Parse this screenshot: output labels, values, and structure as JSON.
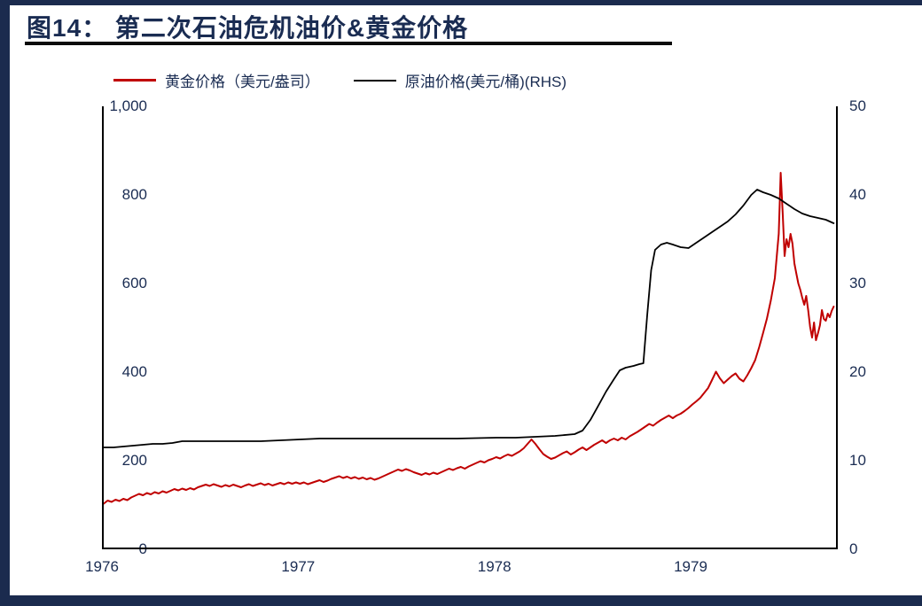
{
  "page": {
    "title": "图14： 第二次石油危机油价&黄金价格"
  },
  "chart_data": {
    "type": "line",
    "title": "第二次石油危机油价&黄金价格",
    "grid": false,
    "legend_position": "top",
    "x_axis": {
      "range": [
        1976,
        1979.75
      ],
      "ticks": [
        "1976",
        "1977",
        "1978",
        "1979"
      ],
      "tick_values": [
        1976,
        1977,
        1978,
        1979
      ]
    },
    "y_left": {
      "label": "黄金价格（美元/盎司）",
      "range": [
        0,
        1000
      ],
      "ticks": [
        "1,000",
        "800",
        "600",
        "400",
        "200",
        "0"
      ]
    },
    "y_right": {
      "label": "原油价格(美元/桶)",
      "range": [
        0,
        50
      ],
      "ticks": [
        "50",
        "40",
        "30",
        "20",
        "10",
        "0"
      ]
    },
    "series": [
      {
        "name": "黄金价格（美元/盎司）",
        "axis": "left",
        "color": "#c00000",
        "width": 2,
        "points": [
          [
            1976.0,
            103
          ],
          [
            1976.02,
            110
          ],
          [
            1976.04,
            107
          ],
          [
            1976.06,
            112
          ],
          [
            1976.08,
            109
          ],
          [
            1976.1,
            114
          ],
          [
            1976.12,
            111
          ],
          [
            1976.14,
            117
          ],
          [
            1976.16,
            121
          ],
          [
            1976.18,
            125
          ],
          [
            1976.2,
            122
          ],
          [
            1976.22,
            127
          ],
          [
            1976.24,
            124
          ],
          [
            1976.26,
            129
          ],
          [
            1976.28,
            126
          ],
          [
            1976.3,
            131
          ],
          [
            1976.32,
            128
          ],
          [
            1976.34,
            132
          ],
          [
            1976.36,
            136
          ],
          [
            1976.38,
            133
          ],
          [
            1976.4,
            137
          ],
          [
            1976.42,
            134
          ],
          [
            1976.44,
            138
          ],
          [
            1976.46,
            135
          ],
          [
            1976.48,
            140
          ],
          [
            1976.5,
            143
          ],
          [
            1976.52,
            146
          ],
          [
            1976.54,
            143
          ],
          [
            1976.56,
            147
          ],
          [
            1976.58,
            144
          ],
          [
            1976.6,
            141
          ],
          [
            1976.62,
            145
          ],
          [
            1976.64,
            142
          ],
          [
            1976.66,
            146
          ],
          [
            1976.68,
            143
          ],
          [
            1976.7,
            140
          ],
          [
            1976.72,
            144
          ],
          [
            1976.74,
            147
          ],
          [
            1976.76,
            143
          ],
          [
            1976.78,
            146
          ],
          [
            1976.8,
            149
          ],
          [
            1976.82,
            145
          ],
          [
            1976.84,
            148
          ],
          [
            1976.86,
            144
          ],
          [
            1976.88,
            147
          ],
          [
            1976.9,
            150
          ],
          [
            1976.92,
            147
          ],
          [
            1976.94,
            151
          ],
          [
            1976.96,
            148
          ],
          [
            1976.98,
            151
          ],
          [
            1977.0,
            148
          ],
          [
            1977.02,
            151
          ],
          [
            1977.04,
            147
          ],
          [
            1977.06,
            150
          ],
          [
            1977.08,
            153
          ],
          [
            1977.1,
            156
          ],
          [
            1977.12,
            152
          ],
          [
            1977.14,
            155
          ],
          [
            1977.16,
            159
          ],
          [
            1977.18,
            162
          ],
          [
            1977.2,
            165
          ],
          [
            1977.22,
            161
          ],
          [
            1977.24,
            164
          ],
          [
            1977.26,
            160
          ],
          [
            1977.28,
            163
          ],
          [
            1977.3,
            159
          ],
          [
            1977.32,
            162
          ],
          [
            1977.34,
            158
          ],
          [
            1977.36,
            161
          ],
          [
            1977.38,
            157
          ],
          [
            1977.4,
            160
          ],
          [
            1977.42,
            164
          ],
          [
            1977.44,
            168
          ],
          [
            1977.46,
            172
          ],
          [
            1977.48,
            176
          ],
          [
            1977.5,
            180
          ],
          [
            1977.52,
            177
          ],
          [
            1977.54,
            181
          ],
          [
            1977.56,
            178
          ],
          [
            1977.58,
            174
          ],
          [
            1977.6,
            171
          ],
          [
            1977.62,
            168
          ],
          [
            1977.64,
            172
          ],
          [
            1977.66,
            169
          ],
          [
            1977.68,
            173
          ],
          [
            1977.7,
            170
          ],
          [
            1977.72,
            174
          ],
          [
            1977.74,
            178
          ],
          [
            1977.76,
            182
          ],
          [
            1977.78,
            179
          ],
          [
            1977.8,
            183
          ],
          [
            1977.82,
            186
          ],
          [
            1977.84,
            182
          ],
          [
            1977.86,
            187
          ],
          [
            1977.88,
            191
          ],
          [
            1977.9,
            195
          ],
          [
            1977.92,
            199
          ],
          [
            1977.94,
            196
          ],
          [
            1977.96,
            201
          ],
          [
            1977.98,
            204
          ],
          [
            1978.0,
            208
          ],
          [
            1978.02,
            205
          ],
          [
            1978.04,
            210
          ],
          [
            1978.06,
            214
          ],
          [
            1978.08,
            211
          ],
          [
            1978.1,
            216
          ],
          [
            1978.12,
            221
          ],
          [
            1978.14,
            228
          ],
          [
            1978.16,
            238
          ],
          [
            1978.18,
            248
          ],
          [
            1978.2,
            238
          ],
          [
            1978.22,
            226
          ],
          [
            1978.24,
            215
          ],
          [
            1978.26,
            209
          ],
          [
            1978.28,
            204
          ],
          [
            1978.3,
            207
          ],
          [
            1978.32,
            212
          ],
          [
            1978.34,
            217
          ],
          [
            1978.36,
            221
          ],
          [
            1978.38,
            214
          ],
          [
            1978.4,
            219
          ],
          [
            1978.42,
            225
          ],
          [
            1978.44,
            230
          ],
          [
            1978.46,
            224
          ],
          [
            1978.48,
            230
          ],
          [
            1978.5,
            236
          ],
          [
            1978.52,
            241
          ],
          [
            1978.54,
            246
          ],
          [
            1978.56,
            240
          ],
          [
            1978.58,
            246
          ],
          [
            1978.6,
            250
          ],
          [
            1978.62,
            246
          ],
          [
            1978.64,
            252
          ],
          [
            1978.66,
            248
          ],
          [
            1978.68,
            255
          ],
          [
            1978.7,
            260
          ],
          [
            1978.72,
            265
          ],
          [
            1978.74,
            271
          ],
          [
            1978.76,
            277
          ],
          [
            1978.78,
            283
          ],
          [
            1978.8,
            279
          ],
          [
            1978.82,
            286
          ],
          [
            1978.84,
            292
          ],
          [
            1978.86,
            297
          ],
          [
            1978.88,
            302
          ],
          [
            1978.9,
            296
          ],
          [
            1978.92,
            302
          ],
          [
            1978.94,
            306
          ],
          [
            1978.96,
            312
          ],
          [
            1978.98,
            319
          ],
          [
            1979.0,
            327
          ],
          [
            1979.02,
            334
          ],
          [
            1979.04,
            342
          ],
          [
            1979.06,
            353
          ],
          [
            1979.08,
            364
          ],
          [
            1979.1,
            382
          ],
          [
            1979.12,
            401
          ],
          [
            1979.14,
            386
          ],
          [
            1979.16,
            375
          ],
          [
            1979.18,
            383
          ],
          [
            1979.2,
            391
          ],
          [
            1979.22,
            397
          ],
          [
            1979.24,
            385
          ],
          [
            1979.26,
            379
          ],
          [
            1979.28,
            393
          ],
          [
            1979.3,
            409
          ],
          [
            1979.32,
            427
          ],
          [
            1979.34,
            456
          ],
          [
            1979.36,
            488
          ],
          [
            1979.38,
            521
          ],
          [
            1979.4,
            562
          ],
          [
            1979.42,
            612
          ],
          [
            1979.43,
            662
          ],
          [
            1979.44,
            712
          ],
          [
            1979.45,
            850
          ],
          [
            1979.46,
            762
          ],
          [
            1979.47,
            662
          ],
          [
            1979.48,
            700
          ],
          [
            1979.49,
            682
          ],
          [
            1979.5,
            712
          ],
          [
            1979.51,
            690
          ],
          [
            1979.52,
            645
          ],
          [
            1979.53,
            622
          ],
          [
            1979.54,
            600
          ],
          [
            1979.55,
            586
          ],
          [
            1979.56,
            568
          ],
          [
            1979.57,
            552
          ],
          [
            1979.58,
            572
          ],
          [
            1979.59,
            540
          ],
          [
            1979.6,
            502
          ],
          [
            1979.61,
            478
          ],
          [
            1979.62,
            512
          ],
          [
            1979.63,
            472
          ],
          [
            1979.64,
            488
          ],
          [
            1979.65,
            506
          ],
          [
            1979.66,
            540
          ],
          [
            1979.67,
            520
          ],
          [
            1979.68,
            516
          ],
          [
            1979.69,
            532
          ],
          [
            1979.7,
            524
          ],
          [
            1979.71,
            538
          ],
          [
            1979.72,
            548
          ]
        ]
      },
      {
        "name": "原油价格(美元/桶)(RHS)",
        "axis": "right",
        "color": "#000000",
        "width": 1.8,
        "points": [
          [
            1976.0,
            11.5
          ],
          [
            1976.05,
            11.5
          ],
          [
            1976.1,
            11.6
          ],
          [
            1976.15,
            11.7
          ],
          [
            1976.2,
            11.8
          ],
          [
            1976.25,
            11.9
          ],
          [
            1976.3,
            11.9
          ],
          [
            1976.35,
            12.0
          ],
          [
            1976.4,
            12.2
          ],
          [
            1976.5,
            12.2
          ],
          [
            1976.6,
            12.2
          ],
          [
            1976.7,
            12.2
          ],
          [
            1976.8,
            12.2
          ],
          [
            1976.9,
            12.3
          ],
          [
            1977.0,
            12.4
          ],
          [
            1977.1,
            12.5
          ],
          [
            1977.2,
            12.5
          ],
          [
            1977.4,
            12.5
          ],
          [
            1977.6,
            12.5
          ],
          [
            1977.8,
            12.5
          ],
          [
            1978.0,
            12.6
          ],
          [
            1978.1,
            12.6
          ],
          [
            1978.2,
            12.7
          ],
          [
            1978.3,
            12.8
          ],
          [
            1978.4,
            13.0
          ],
          [
            1978.44,
            13.4
          ],
          [
            1978.48,
            14.6
          ],
          [
            1978.52,
            16.2
          ],
          [
            1978.56,
            17.8
          ],
          [
            1978.6,
            19.2
          ],
          [
            1978.63,
            20.2
          ],
          [
            1978.66,
            20.5
          ],
          [
            1978.7,
            20.7
          ],
          [
            1978.73,
            20.9
          ],
          [
            1978.75,
            21.0
          ],
          [
            1978.77,
            26.5
          ],
          [
            1978.79,
            31.5
          ],
          [
            1978.81,
            33.8
          ],
          [
            1978.84,
            34.4
          ],
          [
            1978.87,
            34.6
          ],
          [
            1978.9,
            34.4
          ],
          [
            1978.94,
            34.1
          ],
          [
            1978.98,
            34.0
          ],
          [
            1979.02,
            34.6
          ],
          [
            1979.06,
            35.2
          ],
          [
            1979.1,
            35.8
          ],
          [
            1979.14,
            36.4
          ],
          [
            1979.18,
            37.0
          ],
          [
            1979.22,
            37.8
          ],
          [
            1979.26,
            38.8
          ],
          [
            1979.3,
            40.0
          ],
          [
            1979.33,
            40.6
          ],
          [
            1979.36,
            40.3
          ],
          [
            1979.4,
            40.0
          ],
          [
            1979.44,
            39.6
          ],
          [
            1979.48,
            39.0
          ],
          [
            1979.52,
            38.4
          ],
          [
            1979.56,
            37.9
          ],
          [
            1979.6,
            37.6
          ],
          [
            1979.64,
            37.4
          ],
          [
            1979.68,
            37.2
          ],
          [
            1979.72,
            36.8
          ]
        ]
      }
    ]
  },
  "colors": {
    "gold_line": "#c00000",
    "oil_line": "#000000",
    "text_navy": "#1a2c52",
    "frame_navy": "#1b2b4e",
    "title_rule": "#0a0a0a",
    "background": "#ffffff"
  }
}
